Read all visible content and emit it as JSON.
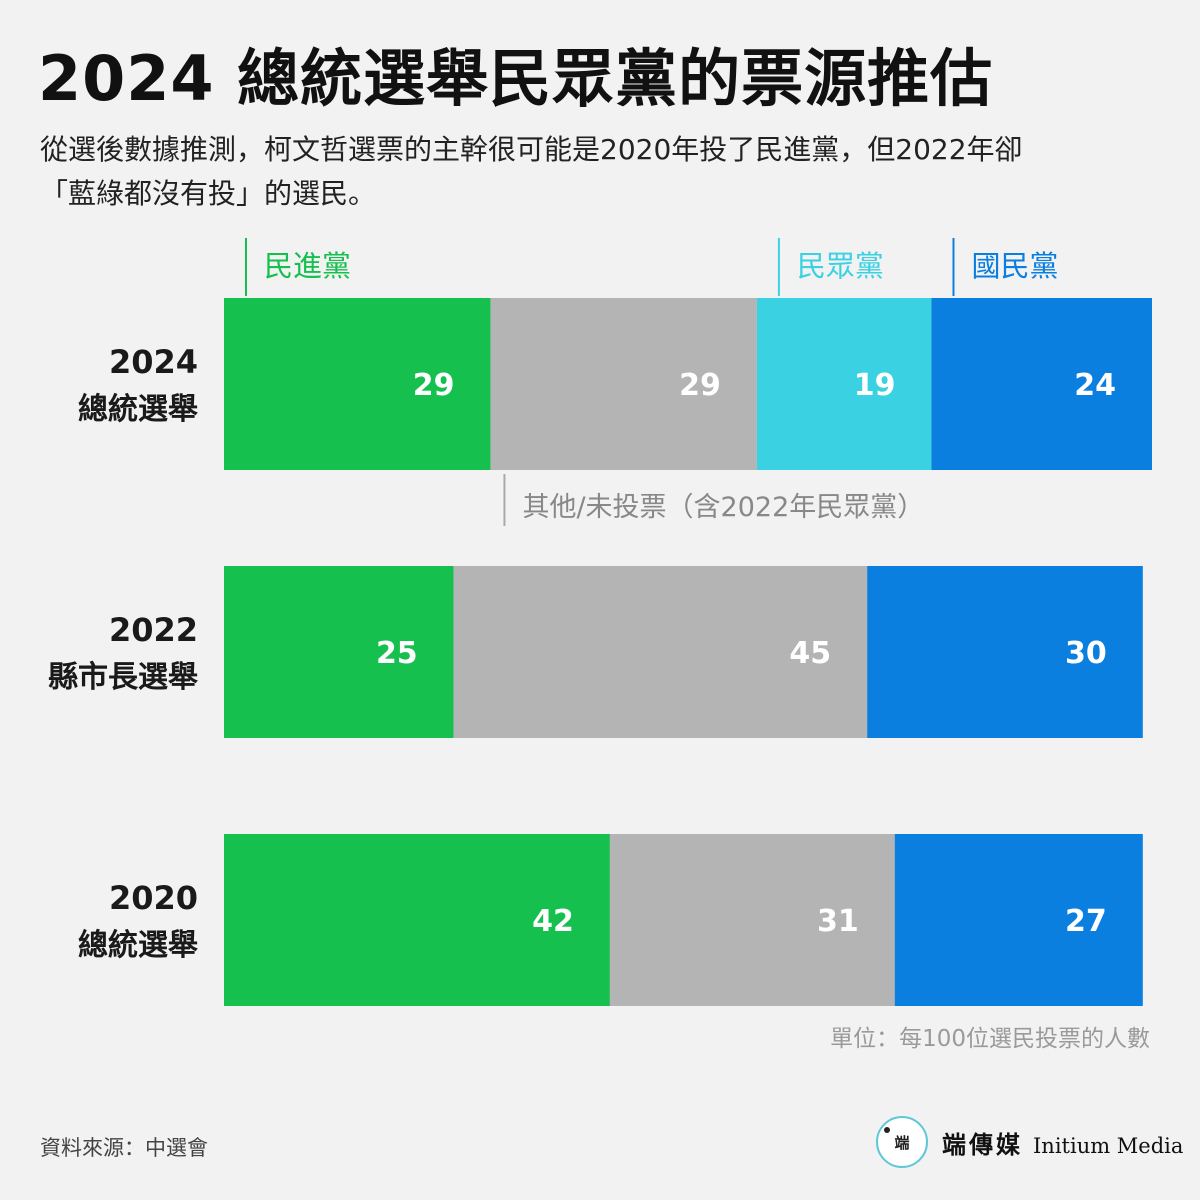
{
  "title": "2024 總統選舉民眾黨的票源推估",
  "subtitle_lines": [
    "從選後數據推測，柯文哲選票的主幹很可能是2020年投了民進黨，但2022年卻",
    "「藍綠都沒有投」的選民。"
  ],
  "source": "資料來源：中選會",
  "brand": {
    "logo_text": "端",
    "name_cn": "端傳媒",
    "name_en": "Initium Media",
    "logo_icon": "initium-logo-icon"
  },
  "colors": {
    "dpp": "#16c04f",
    "other": "#b4b4b4",
    "tpp": "#3ad1e2",
    "kmt": "#0a7fe0",
    "value_label": "#ffffff",
    "legend_text_other": "#888888"
  },
  "chart_data": {
    "type": "bar",
    "orientation": "horizontal",
    "stacked": true,
    "categories": [
      [
        "2024",
        "總統選舉"
      ],
      [
        "2022",
        "縣市長選舉"
      ],
      [
        "2020",
        "總統選舉"
      ]
    ],
    "series": [
      {
        "name": "民進黨",
        "color_key": "dpp",
        "values": [
          29,
          25,
          42
        ]
      },
      {
        "name": "其他/未投票（含2022年民眾黨）",
        "color_key": "other",
        "values": [
          29,
          45,
          31
        ]
      },
      {
        "name": "民眾黨",
        "color_key": "tpp",
        "values": [
          19,
          null,
          null
        ]
      },
      {
        "name": "國民黨",
        "color_key": "kmt",
        "values": [
          24,
          30,
          27
        ]
      }
    ],
    "xlim": [
      0,
      101
    ],
    "unit_note": "單位：每100位選民投票的人數",
    "grid": false
  }
}
